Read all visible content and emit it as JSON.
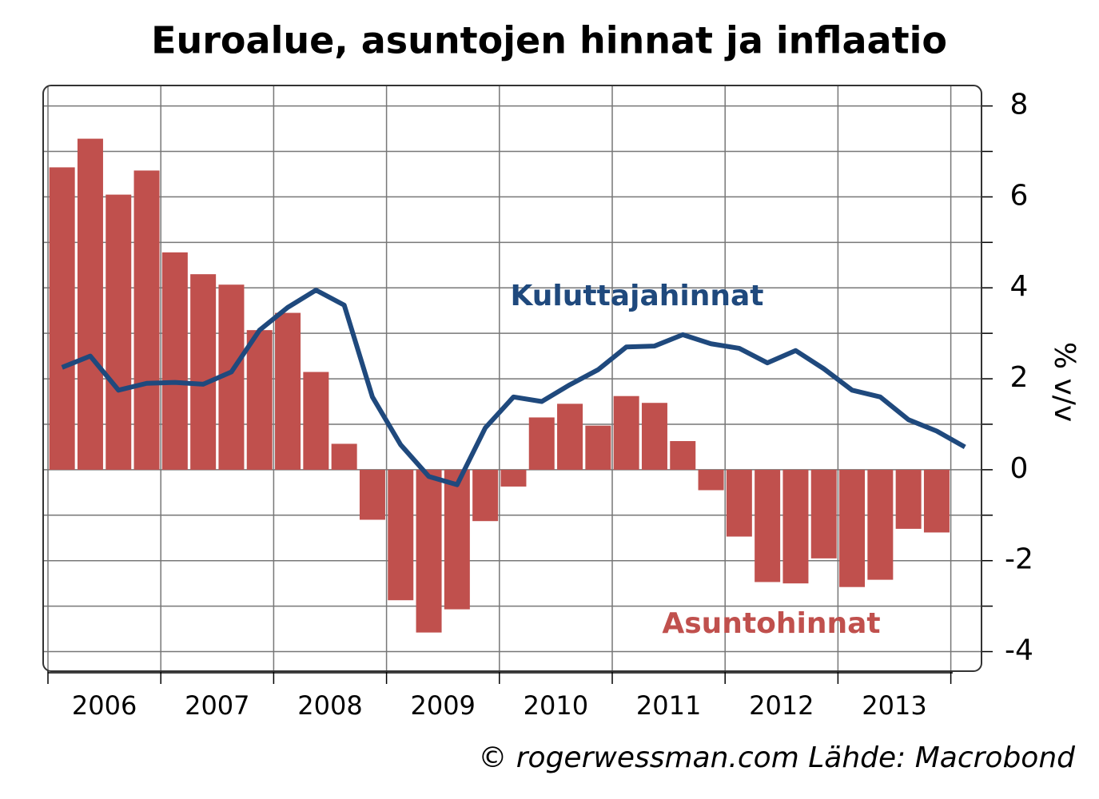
{
  "chart_data": {
    "type": "bar_line",
    "title": "Euroalue, asuntojen hinnat ja inflaatio",
    "y_label": "% v/v",
    "source": "© rogerwessman.com Lähde: Macrobond",
    "categories": [
      null,
      null,
      null,
      null,
      null,
      null,
      null,
      null,
      null,
      null,
      null,
      null,
      null,
      null,
      null,
      null,
      null,
      null,
      null,
      null,
      null,
      null,
      null,
      null,
      null,
      null,
      null,
      null,
      null,
      null,
      null,
      null,
      null
    ],
    "year_labels": [
      "2006",
      "2007",
      "2008",
      "2009",
      "2010",
      "2011",
      "2012",
      "2013"
    ],
    "series": [
      {
        "name": "Asuntohinnat",
        "type": "bar",
        "color": "#c0504d",
        "values": [
          6.65,
          7.28,
          6.05,
          6.58,
          4.78,
          4.3,
          4.07,
          3.07,
          3.45,
          2.15,
          0.57,
          -1.1,
          -2.87,
          -3.58,
          -3.07,
          -1.13,
          -0.37,
          1.15,
          1.45,
          0.97,
          1.62,
          1.47,
          0.63,
          -0.45,
          -1.47,
          -2.47,
          -2.5,
          -1.95,
          -2.58,
          -2.42,
          -1.3,
          -1.38,
          null
        ]
      },
      {
        "name": "Kuluttajahinnat",
        "type": "line",
        "color": "#1f497d",
        "values": [
          2.25,
          2.5,
          1.75,
          1.9,
          1.92,
          1.88,
          2.15,
          3.07,
          3.57,
          3.95,
          3.62,
          1.6,
          0.55,
          -0.15,
          -0.33,
          0.92,
          1.6,
          1.5,
          1.87,
          2.2,
          2.7,
          2.72,
          2.97,
          2.77,
          2.67,
          2.35,
          2.62,
          2.22,
          1.75,
          1.6,
          1.1,
          0.85,
          0.5
        ]
      }
    ],
    "ylim": [
      -4.43,
      8.45
    ],
    "yticks": [
      -4,
      -2,
      0,
      2,
      4,
      6,
      8
    ],
    "yticks_minor": [
      -3,
      -1,
      1,
      3,
      5,
      7
    ],
    "grid": true
  }
}
